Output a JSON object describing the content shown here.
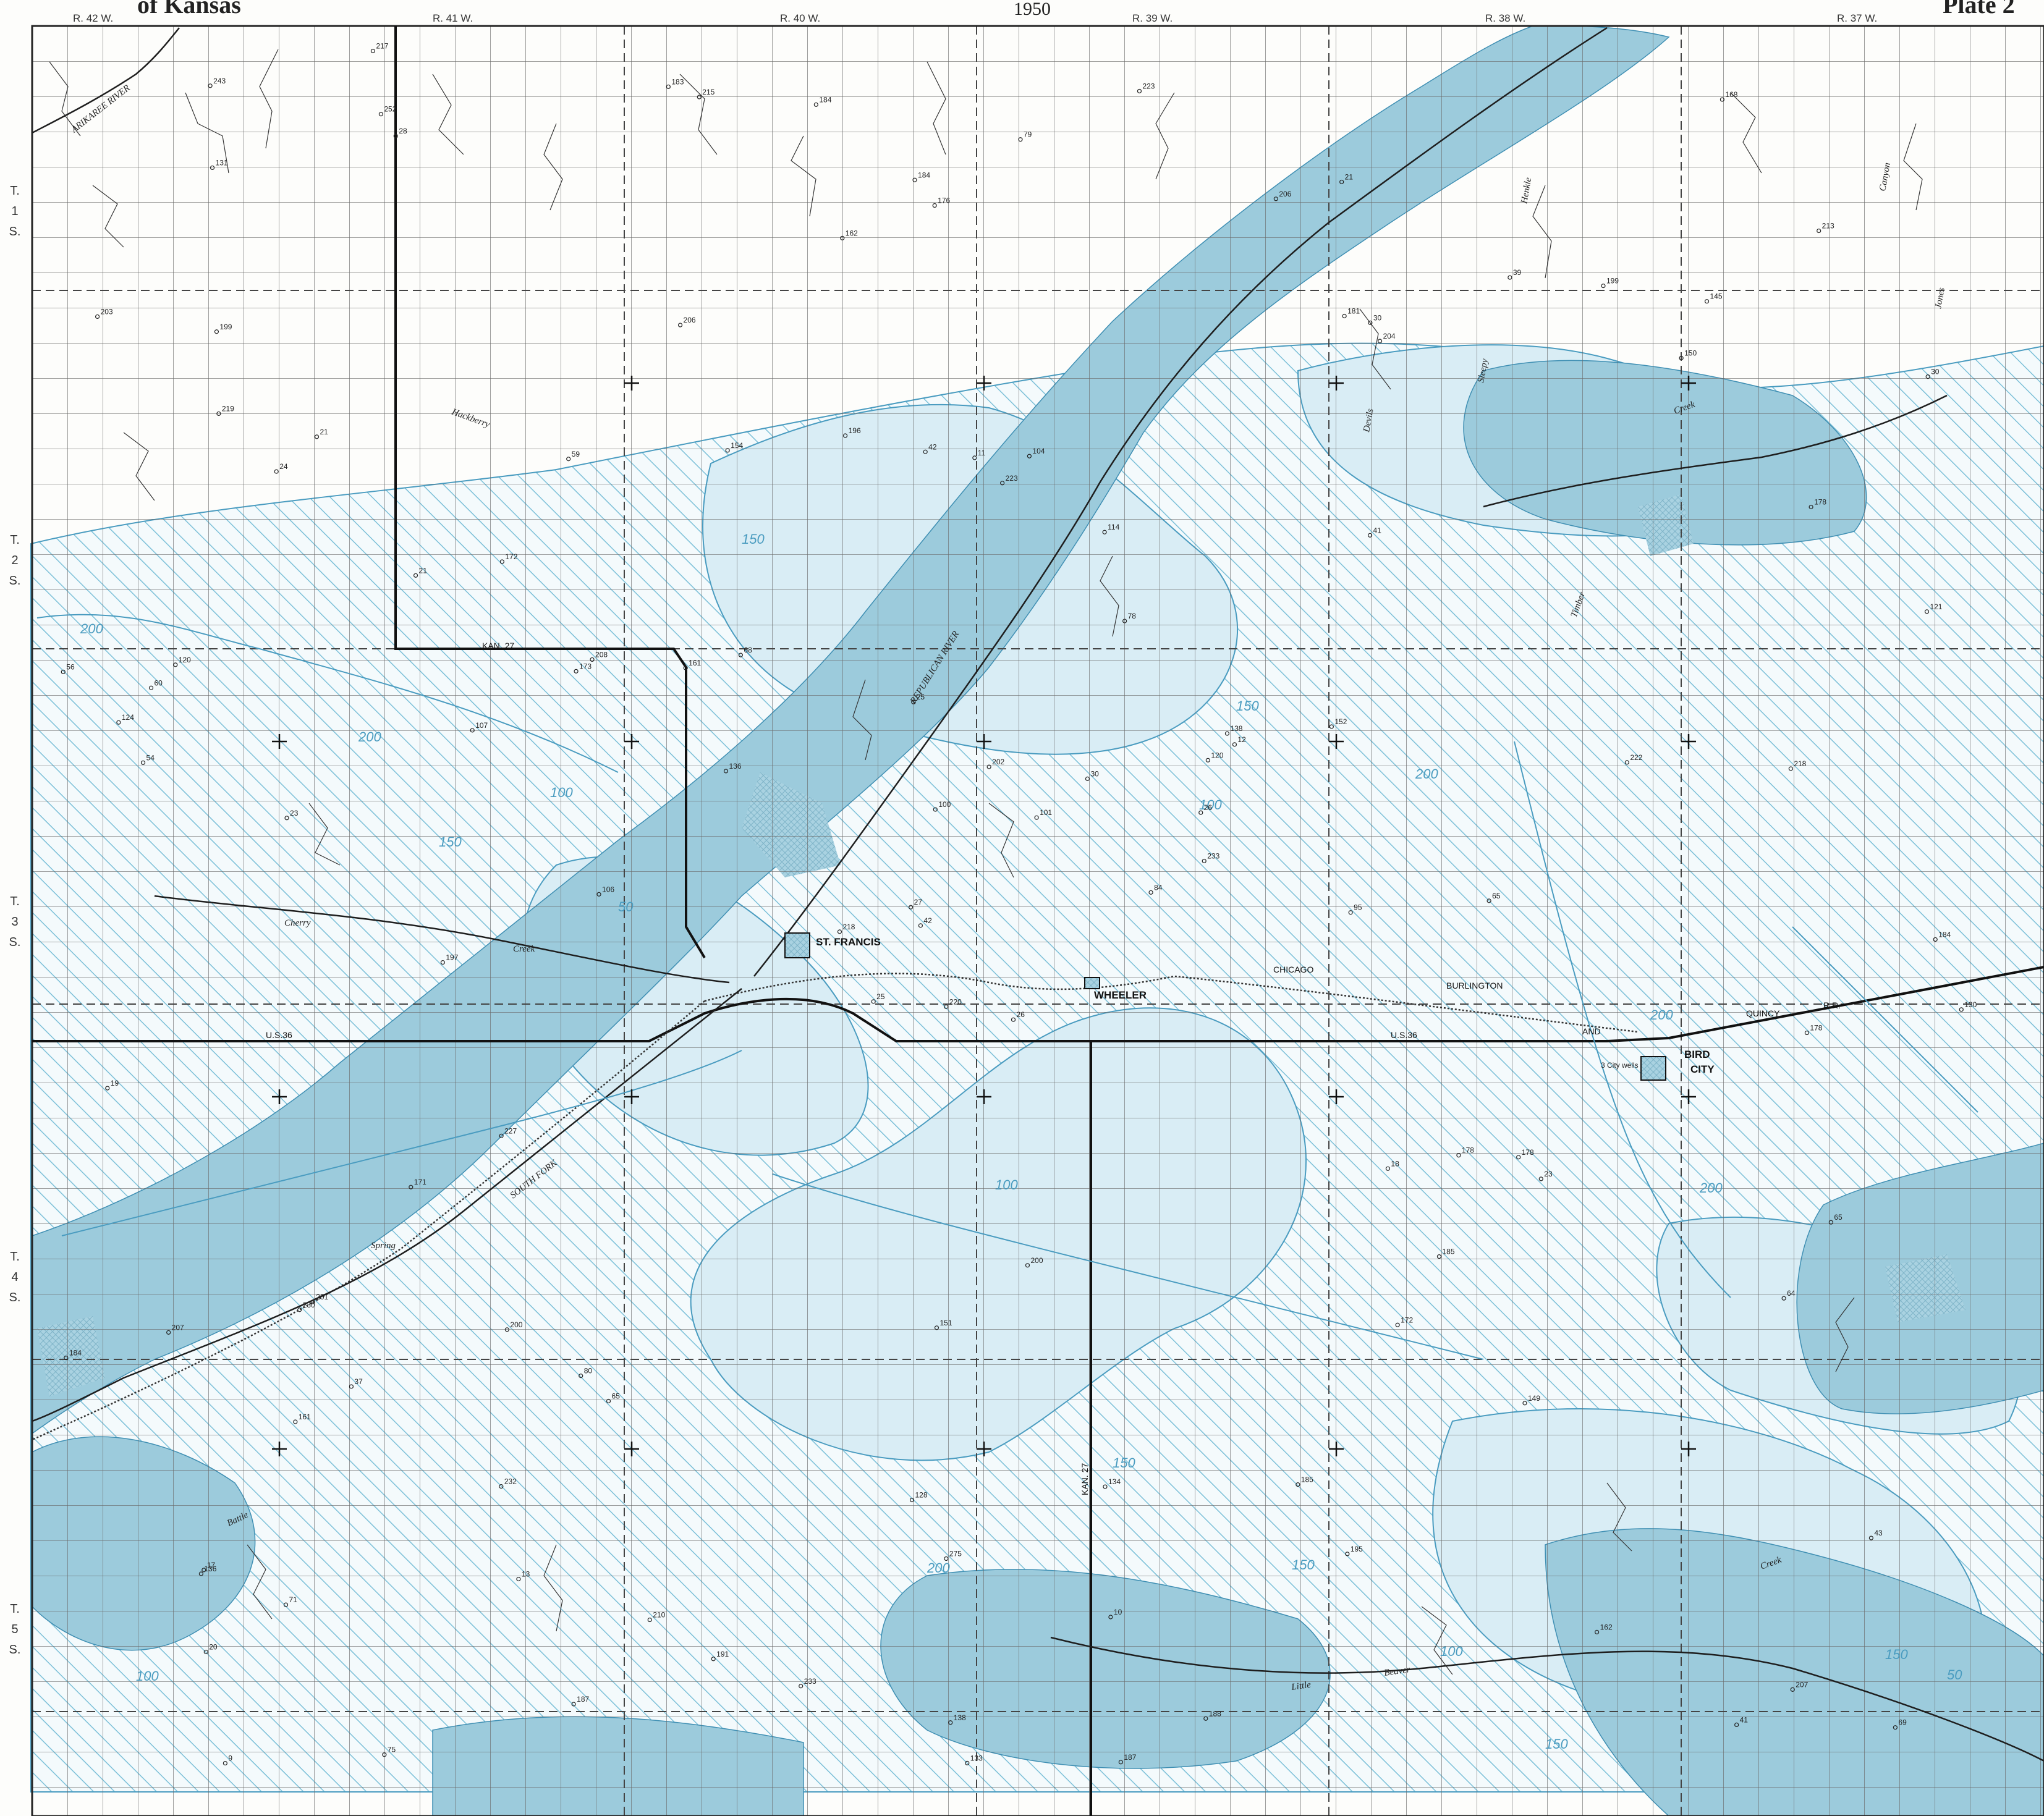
{
  "header": {
    "left_title": "of Kansas",
    "year": "1950",
    "plate": "Plate 2"
  },
  "colors": {
    "paper": "#fdfdfb",
    "grid": "#555555",
    "water_light": "#d7ecf4",
    "water_dark": "#8fc4d6",
    "hatch": "#7cc0d8",
    "contour": "#4a9cc0"
  },
  "ranges": [
    "R. 42 W.",
    "R. 41 W.",
    "R. 40 W.",
    "R. 39 W.",
    "R. 38 W.",
    "R. 37 W."
  ],
  "townships": [
    {
      "t": "T.",
      "n": "1",
      "d": "S."
    },
    {
      "t": "T.",
      "n": "2",
      "d": "S."
    },
    {
      "t": "T.",
      "n": "3",
      "d": "S."
    },
    {
      "t": "T.",
      "n": "4",
      "d": "S."
    },
    {
      "t": "T.",
      "n": "5",
      "d": "S."
    }
  ],
  "places": {
    "st_francis": "ST. FRANCIS",
    "wheeler": "WHEELER",
    "bird": "BIRD",
    "city": "CITY",
    "wells_note": "3 City wells"
  },
  "roads": {
    "us36_a": "U.S.36",
    "us36_b": "U.S.36",
    "kan27_a": "KAN. 27",
    "kan27_b": "KAN. 27",
    "rr1": "CHICAGO",
    "rr2": "BURLINGTON",
    "rr3": "AND",
    "rr4": "QUINCY",
    "rr5": "R.R."
  },
  "streams": {
    "arikaree": "ARIKAREE RIVER",
    "republican": "REPUBLICAN RIVER",
    "south_fork": "SOUTH FORK",
    "cherry": "Cherry",
    "creek1": "Creek",
    "hackberry": "Hackberry",
    "spring": "Spring",
    "little": "Little",
    "beaver": "Beaver",
    "creek2": "Creek",
    "creek3": "Creek",
    "timber": "Timber",
    "sleepy": "Sleepy",
    "henkle": "Henkle",
    "canyon": "Canyon",
    "jones": "Jones",
    "battle": "Battle",
    "devils": "Devils"
  },
  "contour_labels": [
    "200",
    "150",
    "100",
    "50",
    "200",
    "150",
    "100",
    "150",
    "200",
    "150",
    "100",
    "200",
    "150",
    "200",
    "100",
    "50",
    "150",
    "100",
    "200",
    "150"
  ],
  "well_numbers": [
    "26",
    "24",
    "42",
    "17",
    "120",
    "65",
    "21",
    "104",
    "30",
    "84",
    "28",
    "69",
    "23",
    "30",
    "25",
    "41",
    "75",
    "42",
    "78",
    "37",
    "68",
    "20",
    "13",
    "11",
    "12",
    "23",
    "21",
    "176",
    "54",
    "18",
    "121",
    "27",
    "128",
    "100",
    "59",
    "39",
    "80",
    "41",
    "43",
    "178",
    "223",
    "161",
    "107",
    "172",
    "187",
    "56",
    "26",
    "9",
    "275",
    "233",
    "161",
    "178",
    "203",
    "185",
    "195",
    "232",
    "252",
    "243",
    "134",
    "145",
    "79",
    "106",
    "120",
    "172",
    "199",
    "217",
    "206",
    "162",
    "202",
    "184",
    "151",
    "191",
    "178",
    "173",
    "136",
    "131",
    "21",
    "19",
    "25",
    "10",
    "30",
    "71",
    "95",
    "65",
    "138",
    "218",
    "200",
    "162",
    "187",
    "185",
    "184",
    "130",
    "152",
    "149",
    "101",
    "64",
    "60",
    "133",
    "181",
    "204",
    "197",
    "183",
    "184",
    "124",
    "171",
    "200",
    "210",
    "138",
    "150",
    "136",
    "178",
    "199",
    "223",
    "218",
    "215",
    "207",
    "220",
    "213",
    "196",
    "184",
    "230",
    "168",
    "114",
    "154",
    "65",
    "227",
    "207",
    "233",
    "222",
    "219",
    "201",
    "188",
    "208",
    "206"
  ]
}
